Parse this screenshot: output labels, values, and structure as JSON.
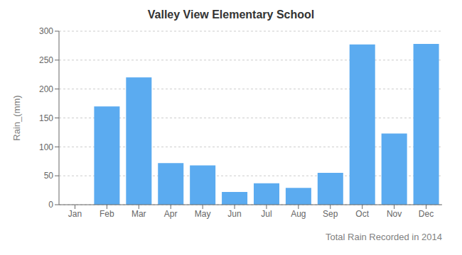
{
  "chart_data": {
    "type": "bar",
    "title": "Valley View Elementary School",
    "xlabel": "Total Rain Recorded in 2014",
    "ylabel": "Rain_(mm)",
    "categories": [
      "Jan",
      "Feb",
      "Mar",
      "Apr",
      "May",
      "Jun",
      "Jul",
      "Aug",
      "Sep",
      "Oct",
      "Nov",
      "Dec"
    ],
    "values": [
      0,
      170,
      220,
      72,
      68,
      22,
      37,
      29,
      55,
      277,
      123,
      278
    ],
    "color": "#5BABF0",
    "ylim": [
      0,
      300
    ],
    "yticks": [
      0,
      50,
      100,
      150,
      200,
      250,
      300
    ],
    "grid": true
  }
}
